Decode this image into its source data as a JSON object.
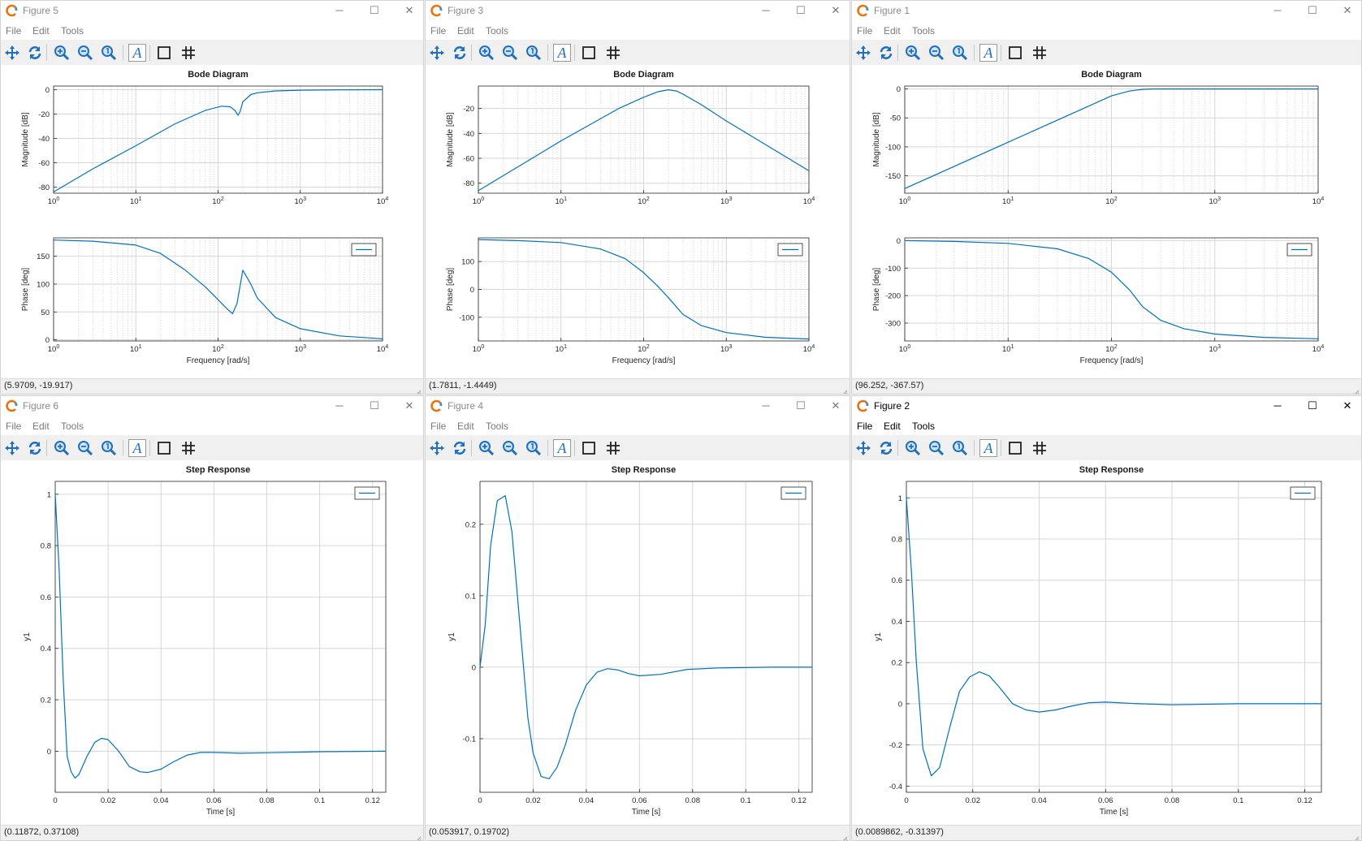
{
  "menu": {
    "file": "File",
    "edit": "Edit",
    "tools": "Tools"
  },
  "window_controls": {
    "minimize": "─",
    "maximize": "☐",
    "close": "✕"
  },
  "colors": {
    "line": "#0072bd",
    "grid": "#d6d6d6",
    "window_bg": "#ffffff",
    "toolbar_bg": "#f0f0f0",
    "tool_icon": "#1f6fc0"
  },
  "toolbar_icons": [
    "pan-icon",
    "rotate-icon",
    "zoom-in-icon",
    "zoom-out-icon",
    "zoom-reset-icon",
    "text-icon",
    "box-icon",
    "grid-icon"
  ],
  "windows": [
    {
      "key": "fig5",
      "title": "Figure 5",
      "status": "(5.9709, -19.917)"
    },
    {
      "key": "fig3",
      "title": "Figure 3",
      "status": "(1.7811, -1.4449)"
    },
    {
      "key": "fig1",
      "title": "Figure 1",
      "status": "(96.252, -367.57)"
    },
    {
      "key": "fig6",
      "title": "Figure 6",
      "status": "(0.11872, 0.37108)"
    },
    {
      "key": "fig4",
      "title": "Figure 4",
      "status": "(0.053917, 0.19702)"
    },
    {
      "key": "fig2",
      "title": "Figure 2",
      "status": "(0.0089862, -0.31397)"
    }
  ],
  "chart_data": [
    {
      "figure": "Figure 5",
      "type": "line",
      "title": "Bode Diagram",
      "subplots": [
        {
          "ylabel": "Magnitude [dB]",
          "xscale": "log",
          "xlim": [
            1,
            10000
          ],
          "ylim": [
            -85,
            3
          ],
          "x_ticks": [
            "10^0",
            "10^1",
            "10^2",
            "10^3",
            "10^4"
          ],
          "y_ticks": [
            0,
            -20,
            -40,
            -60,
            -80
          ],
          "grid": true,
          "series": [
            {
              "x": [
                1,
                3,
                10,
                30,
                70,
                110,
                140,
                160,
                175,
                185,
                200,
                250,
                300,
                500,
                1000,
                3000,
                10000
              ],
              "y": [
                -84,
                -65,
                -46,
                -28,
                -17,
                -13.5,
                -14,
                -17,
                -21,
                -18,
                -10,
                -4,
                -2.5,
                -1,
                -0.4,
                -0.1,
                0
              ]
            }
          ]
        },
        {
          "ylabel": "Phase [deg]",
          "xlabel": "Frequency [rad/s]",
          "xscale": "log",
          "xlim": [
            1,
            10000
          ],
          "ylim": [
            -2,
            183
          ],
          "x_ticks": [
            "10^0",
            "10^1",
            "10^2",
            "10^3",
            "10^4"
          ],
          "y_ticks": [
            0,
            50,
            100,
            150
          ],
          "grid": true,
          "legend": "top-right",
          "series": [
            {
              "x": [
                1,
                3,
                10,
                20,
                40,
                70,
                100,
                130,
                150,
                170,
                200,
                250,
                300,
                500,
                1000,
                3000,
                10000
              ],
              "y": [
                179,
                177,
                170,
                155,
                125,
                95,
                72,
                55,
                47,
                65,
                125,
                100,
                75,
                40,
                20,
                7,
                2
              ]
            }
          ]
        }
      ]
    },
    {
      "figure": "Figure 3",
      "type": "line",
      "title": "Bode Diagram",
      "subplots": [
        {
          "ylabel": "Magnitude [dB]",
          "xscale": "log",
          "xlim": [
            1,
            10000
          ],
          "ylim": [
            -88,
            -2
          ],
          "x_ticks": [
            "10^0",
            "10^1",
            "10^2",
            "10^3",
            "10^4"
          ],
          "y_ticks": [
            -20,
            -40,
            -60,
            -80
          ],
          "grid": true,
          "series": [
            {
              "x": [
                1,
                10,
                50,
                100,
                150,
                200,
                250,
                300,
                500,
                1000,
                10000
              ],
              "y": [
                -86,
                -46,
                -20,
                -11,
                -6.5,
                -5,
                -6,
                -8.5,
                -17,
                -30,
                -70
              ]
            }
          ]
        },
        {
          "ylabel": "Phase [deg]",
          "xlabel": "Frequency [rad/s]",
          "xscale": "log",
          "xlim": [
            1,
            10000
          ],
          "ylim": [
            -185,
            185
          ],
          "x_ticks": [
            "10^0",
            "10^1",
            "10^2",
            "10^3",
            "10^4"
          ],
          "y_ticks": [
            100,
            0,
            -100
          ],
          "grid": true,
          "legend": "top-right",
          "series": [
            {
              "x": [
                1,
                3,
                10,
                30,
                60,
                100,
                150,
                200,
                300,
                500,
                1000,
                3000,
                10000
              ],
              "y": [
                179,
                175,
                168,
                145,
                110,
                60,
                10,
                -30,
                -90,
                -130,
                -155,
                -172,
                -178
              ]
            }
          ]
        }
      ]
    },
    {
      "figure": "Figure 1",
      "type": "line",
      "title": "Bode Diagram",
      "subplots": [
        {
          "ylabel": "Magnitude [dB]",
          "xscale": "log",
          "xlim": [
            1,
            10000
          ],
          "ylim": [
            -180,
            5
          ],
          "x_ticks": [
            "10^0",
            "10^1",
            "10^2",
            "10^3",
            "10^4"
          ],
          "y_ticks": [
            0,
            -50,
            -100,
            -150
          ],
          "grid": true,
          "series": [
            {
              "x": [
                1,
                10,
                50,
                100,
                150,
                200,
                250,
                300,
                500,
                1000,
                10000
              ],
              "y": [
                -172,
                -92,
                -36,
                -12,
                -3.5,
                -0.8,
                0,
                0,
                0,
                0,
                0
              ]
            }
          ]
        },
        {
          "ylabel": "Phase [deg]",
          "xlabel": "Frequency [rad/s]",
          "xscale": "log",
          "xlim": [
            1,
            10000
          ],
          "ylim": [
            -365,
            10
          ],
          "x_ticks": [
            "10^0",
            "10^1",
            "10^2",
            "10^3",
            "10^4"
          ],
          "y_ticks": [
            0,
            -100,
            -200,
            -300
          ],
          "grid": true,
          "legend": "top-right",
          "series": [
            {
              "x": [
                1,
                3,
                10,
                30,
                60,
                100,
                150,
                200,
                300,
                500,
                1000,
                3000,
                10000
              ],
              "y": [
                0,
                -3,
                -10,
                -30,
                -65,
                -115,
                -180,
                -240,
                -290,
                -320,
                -340,
                -352,
                -357
              ]
            }
          ]
        }
      ]
    },
    {
      "figure": "Figure 6",
      "type": "line",
      "title": "Step Response",
      "subplots": [
        {
          "ylabel": "y1",
          "xlabel": "Time [s]",
          "xlim": [
            0,
            0.125
          ],
          "ylim": [
            -0.16,
            1.05
          ],
          "x_ticks": [
            "0",
            "0.02",
            "0.04",
            "0.06",
            "0.08",
            "0.1",
            "0.12"
          ],
          "y_ticks": [
            0,
            0.2,
            0.4,
            0.6,
            0.8,
            1
          ],
          "grid": true,
          "legend": "top-right",
          "series": [
            {
              "x": [
                0,
                0.0015,
                0.003,
                0.0045,
                0.006,
                0.0075,
                0.009,
                0.012,
                0.015,
                0.0175,
                0.02,
                0.024,
                0.028,
                0.032,
                0.035,
                0.04,
                0.045,
                0.05,
                0.055,
                0.06,
                0.07,
                0.08,
                0.1,
                0.125
              ],
              "y": [
                1,
                0.7,
                0.28,
                -0.02,
                -0.08,
                -0.105,
                -0.09,
                -0.02,
                0.035,
                0.05,
                0.045,
                0.0,
                -0.06,
                -0.08,
                -0.083,
                -0.07,
                -0.04,
                -0.015,
                -0.005,
                -0.005,
                -0.008,
                -0.006,
                -0.002,
                0
              ]
            }
          ]
        }
      ]
    },
    {
      "figure": "Figure 4",
      "type": "line",
      "title": "Step Response",
      "subplots": [
        {
          "ylabel": "y1",
          "xlabel": "Time [s]",
          "xlim": [
            0,
            0.125
          ],
          "ylim": [
            -0.175,
            0.26
          ],
          "x_ticks": [
            "0",
            "0.02",
            "0.04",
            "0.06",
            "0.08",
            "0.1",
            "0.12"
          ],
          "y_ticks": [
            -0.1,
            0,
            0.1,
            0.2
          ],
          "grid": true,
          "legend": "top-right",
          "series": [
            {
              "x": [
                0,
                0.002,
                0.004,
                0.0065,
                0.0095,
                0.012,
                0.015,
                0.018,
                0.02,
                0.023,
                0.026,
                0.029,
                0.032,
                0.036,
                0.04,
                0.044,
                0.048,
                0.052,
                0.056,
                0.06,
                0.068,
                0.078,
                0.09,
                0.11,
                0.125
              ],
              "y": [
                0,
                0.06,
                0.17,
                0.233,
                0.24,
                0.19,
                0.06,
                -0.07,
                -0.12,
                -0.153,
                -0.156,
                -0.14,
                -0.11,
                -0.06,
                -0.025,
                -0.007,
                -0.002,
                -0.004,
                -0.009,
                -0.012,
                -0.01,
                -0.003,
                -0.001,
                0,
                0
              ]
            }
          ]
        }
      ]
    },
    {
      "figure": "Figure 2",
      "type": "line",
      "title": "Step Response",
      "subplots": [
        {
          "ylabel": "y1",
          "xlabel": "Time [s]",
          "xlim": [
            0,
            0.125
          ],
          "ylim": [
            -0.43,
            1.08
          ],
          "x_ticks": [
            "0",
            "0.02",
            "0.04",
            "0.06",
            "0.08",
            "0.1",
            "0.12"
          ],
          "y_ticks": [
            -0.4,
            -0.2,
            0,
            0.2,
            0.4,
            0.6,
            0.8,
            1
          ],
          "grid": true,
          "legend": "top-right",
          "series": [
            {
              "x": [
                0,
                0.0015,
                0.003,
                0.005,
                0.0075,
                0.01,
                0.013,
                0.016,
                0.019,
                0.022,
                0.025,
                0.028,
                0.032,
                0.036,
                0.04,
                0.045,
                0.05,
                0.055,
                0.06,
                0.07,
                0.08,
                0.1,
                0.125
              ],
              "y": [
                1,
                0.65,
                0.2,
                -0.22,
                -0.35,
                -0.31,
                -0.12,
                0.06,
                0.13,
                0.155,
                0.135,
                0.08,
                0.0,
                -0.03,
                -0.04,
                -0.03,
                -0.01,
                0.005,
                0.008,
                0.0,
                -0.005,
                0.0,
                0.0
              ]
            }
          ]
        }
      ]
    }
  ]
}
